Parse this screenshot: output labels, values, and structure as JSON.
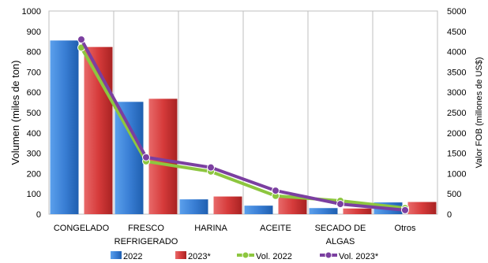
{
  "chart_data": {
    "type": "bar",
    "categories": [
      [
        "CONGELADO"
      ],
      [
        "FRESCO",
        "REFRIGERADO"
      ],
      [
        "HARINA"
      ],
      [
        "ACEITE"
      ],
      [
        "SECADO DE",
        "ALGAS"
      ],
      [
        "Otros"
      ]
    ],
    "series": [
      {
        "name": "2022",
        "kind": "bar",
        "axis": "left",
        "color": "#3a7fd5",
        "values": [
          855,
          553,
          73,
          42,
          30,
          58
        ]
      },
      {
        "name": "2023*",
        "kind": "bar",
        "axis": "left",
        "color": "#d63b3b",
        "values": [
          823,
          568,
          87,
          92,
          28,
          60
        ]
      },
      {
        "name": "Vol. 2022",
        "kind": "line",
        "axis": "right",
        "color": "#8dc63f",
        "values": [
          4100,
          1300,
          1050,
          450,
          330,
          150
        ]
      },
      {
        "name": "Vol. 2023*",
        "kind": "line",
        "axis": "right",
        "color": "#7b3fa0",
        "values": [
          4300,
          1400,
          1150,
          580,
          250,
          100
        ]
      }
    ],
    "ylabel": "Volumen  (miles de ton)",
    "y2label": "Valor FOB (millones de US$)",
    "ylim": [
      0,
      1000
    ],
    "y2lim": [
      0,
      5000
    ],
    "yticks": [
      "0",
      "100",
      "200",
      "300",
      "400",
      "500",
      "600",
      "700",
      "800",
      "900",
      "1000"
    ],
    "y2ticks": [
      "0",
      "500",
      "1000",
      "1500",
      "2000",
      "2500",
      "3000",
      "3500",
      "4000",
      "4500",
      "5000"
    ],
    "grid": "vertical category separators",
    "legend": "bottom"
  }
}
